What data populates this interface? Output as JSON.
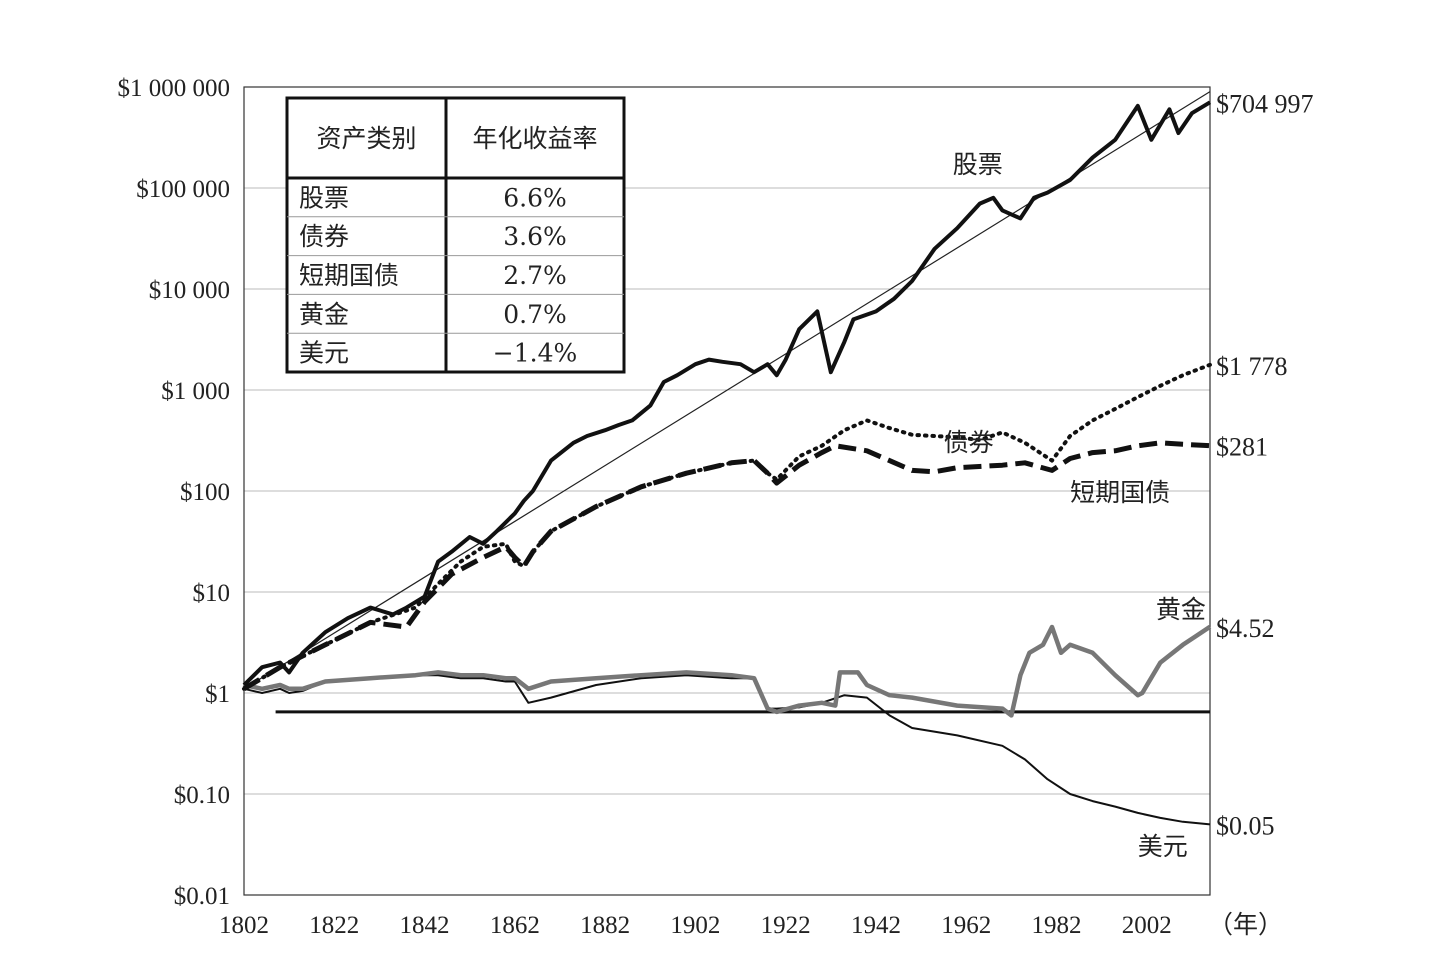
{
  "chart_data": {
    "type": "line",
    "y_scale": "log",
    "ylim": [
      0.01,
      1000000
    ],
    "xlim": [
      1802,
      2016
    ],
    "x_ticks": [
      "1802",
      "1822",
      "1842",
      "1862",
      "1882",
      "1902",
      "1922",
      "1942",
      "1962",
      "1982",
      "2002"
    ],
    "x_unit": "（年）",
    "y_ticks": [
      {
        "value": 1000000,
        "label": "$1 000 000"
      },
      {
        "value": 100000,
        "label": "$100 000"
      },
      {
        "value": 10000,
        "label": "$10 000"
      },
      {
        "value": 1000,
        "label": "$1 000"
      },
      {
        "value": 100,
        "label": "$100"
      },
      {
        "value": 10,
        "label": "$10"
      },
      {
        "value": 1,
        "label": "$1"
      },
      {
        "value": 0.1,
        "label": "$0.10"
      },
      {
        "value": 0.01,
        "label": "$0.01"
      }
    ],
    "grid": true,
    "reference_line": {
      "value": 0.65
    },
    "trend_line": {
      "x": [
        1802,
        2016
      ],
      "y": [
        1.1,
        900000
      ]
    },
    "series": [
      {
        "name": "股票",
        "end_label": "$704 997",
        "style": "solid-thick",
        "color": "#111111",
        "x": [
          1802,
          1806,
          1810,
          1812,
          1815,
          1820,
          1825,
          1830,
          1835,
          1838,
          1842,
          1845,
          1848,
          1852,
          1855,
          1858,
          1862,
          1864,
          1866,
          1870,
          1875,
          1878,
          1882,
          1885,
          1888,
          1892,
          1895,
          1898,
          1902,
          1905,
          1908,
          1912,
          1915,
          1918,
          1920,
          1922,
          1925,
          1929,
          1932,
          1935,
          1937,
          1942,
          1946,
          1950,
          1955,
          1960,
          1965,
          1968,
          1970,
          1974,
          1977,
          1980,
          1985,
          1990,
          1995,
          2000,
          2003,
          2007,
          2009,
          2012,
          2016
        ],
        "y": [
          1.2,
          1.8,
          2.0,
          1.6,
          2.5,
          4,
          5.5,
          7,
          6,
          7,
          9,
          20,
          25,
          35,
          30,
          40,
          60,
          80,
          100,
          200,
          300,
          350,
          400,
          450,
          500,
          700,
          1200,
          1400,
          1800,
          2000,
          1900,
          1800,
          1500,
          1800,
          1400,
          2000,
          4000,
          6000,
          1500,
          3000,
          5000,
          6000,
          8000,
          12000,
          25000,
          40000,
          70000,
          80000,
          60000,
          50000,
          80000,
          90000,
          120000,
          200000,
          300000,
          650000,
          300000,
          600000,
          350000,
          550000,
          704997
        ]
      },
      {
        "name": "债券",
        "end_label": "$1 778",
        "style": "dotted",
        "color": "#111111",
        "x": [
          1802,
          1810,
          1820,
          1830,
          1840,
          1845,
          1850,
          1855,
          1860,
          1862,
          1864,
          1866,
          1870,
          1880,
          1890,
          1900,
          1910,
          1915,
          1918,
          1920,
          1925,
          1930,
          1935,
          1940,
          1945,
          1950,
          1960,
          1965,
          1970,
          1975,
          1981,
          1985,
          1990,
          1995,
          2000,
          2005,
          2010,
          2016
        ],
        "y": [
          1.1,
          1.8,
          3,
          5,
          7,
          12,
          20,
          28,
          30,
          20,
          18,
          25,
          40,
          70,
          110,
          150,
          190,
          200,
          150,
          130,
          220,
          280,
          400,
          500,
          420,
          360,
          340,
          320,
          380,
          300,
          200,
          350,
          500,
          650,
          850,
          1100,
          1400,
          1778
        ]
      },
      {
        "name": "短期国债",
        "end_label": "$281",
        "style": "dashed",
        "color": "#111111",
        "x": [
          1802,
          1810,
          1820,
          1830,
          1838,
          1842,
          1848,
          1855,
          1860,
          1862,
          1864,
          1866,
          1870,
          1880,
          1890,
          1900,
          1910,
          1915,
          1918,
          1920,
          1925,
          1930,
          1933,
          1940,
          1945,
          1950,
          1955,
          1960,
          1970,
          1975,
          1981,
          1985,
          1990,
          1995,
          2000,
          2005,
          2010,
          2016
        ],
        "y": [
          1.1,
          1.8,
          3,
          5,
          4.5,
          8,
          15,
          22,
          28,
          22,
          18,
          25,
          40,
          70,
          110,
          150,
          190,
          200,
          150,
          120,
          180,
          240,
          280,
          250,
          200,
          160,
          155,
          170,
          180,
          190,
          160,
          210,
          240,
          250,
          280,
          300,
          290,
          281
        ]
      },
      {
        "name": "黄金",
        "end_label": "$4.52",
        "style": "solid-gray",
        "color": "#777777",
        "x": [
          1802,
          1806,
          1810,
          1812,
          1815,
          1820,
          1830,
          1840,
          1845,
          1850,
          1855,
          1860,
          1862,
          1865,
          1870,
          1880,
          1890,
          1900,
          1910,
          1915,
          1918,
          1920,
          1925,
          1930,
          1933,
          1934,
          1938,
          1940,
          1945,
          1950,
          1960,
          1970,
          1972,
          1974,
          1976,
          1979,
          1981,
          1983,
          1985,
          1990,
          1995,
          2000,
          2001,
          2005,
          2010,
          2016
        ],
        "y": [
          1.2,
          1.1,
          1.2,
          1.1,
          1.1,
          1.3,
          1.4,
          1.5,
          1.6,
          1.5,
          1.5,
          1.4,
          1.4,
          1.1,
          1.3,
          1.4,
          1.5,
          1.6,
          1.5,
          1.4,
          0.7,
          0.65,
          0.75,
          0.8,
          0.75,
          1.6,
          1.6,
          1.2,
          0.95,
          0.9,
          0.75,
          0.7,
          0.6,
          1.5,
          2.5,
          3,
          4.5,
          2.5,
          3,
          2.5,
          1.5,
          0.95,
          1,
          2,
          3,
          4.52
        ]
      },
      {
        "name": "美元",
        "end_label": "$0.05",
        "style": "solid-thin",
        "color": "#111111",
        "x": [
          1802,
          1806,
          1810,
          1812,
          1815,
          1820,
          1830,
          1840,
          1845,
          1850,
          1855,
          1860,
          1862,
          1865,
          1870,
          1880,
          1890,
          1900,
          1910,
          1915,
          1918,
          1920,
          1925,
          1930,
          1935,
          1940,
          1945,
          1950,
          1960,
          1970,
          1975,
          1980,
          1985,
          1990,
          1995,
          2000,
          2005,
          2010,
          2016
        ],
        "y": [
          1.1,
          1.0,
          1.1,
          1.0,
          1.05,
          1.3,
          1.4,
          1.5,
          1.5,
          1.4,
          1.4,
          1.3,
          1.3,
          0.8,
          0.9,
          1.2,
          1.4,
          1.5,
          1.4,
          1.4,
          0.7,
          0.7,
          0.72,
          0.8,
          0.95,
          0.9,
          0.6,
          0.45,
          0.38,
          0.3,
          0.22,
          0.14,
          0.1,
          0.085,
          0.075,
          0.065,
          0.058,
          0.053,
          0.05
        ]
      }
    ],
    "table": {
      "headers": [
        "资产类别",
        "年化收益率"
      ],
      "rows": [
        [
          "股票",
          "6.6%"
        ],
        [
          "债券",
          "3.6%"
        ],
        [
          "短期国债",
          "2.7%"
        ],
        [
          "黄金",
          "0.7%"
        ],
        [
          "美元",
          "−1.4%"
        ]
      ]
    }
  }
}
